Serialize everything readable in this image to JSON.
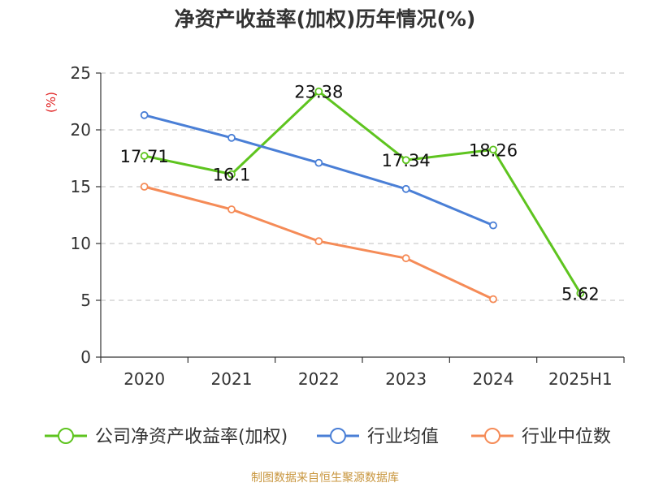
{
  "chart_data": {
    "type": "line",
    "title": "净资产收益率(加权)历年情况(%)",
    "ylabel": "(%)",
    "xlabel": "",
    "categories": [
      "2020",
      "2021",
      "2022",
      "2023",
      "2024",
      "2025H1"
    ],
    "ylim": [
      0,
      25
    ],
    "yticks": [
      0,
      5,
      10,
      15,
      20,
      25
    ],
    "grid": "horizontal dashed",
    "legend_position": "bottom",
    "series": [
      {
        "name": "公司净资产收益率(加权)",
        "color": "#5ec41f",
        "values": [
          17.71,
          16.1,
          23.38,
          17.34,
          18.26,
          5.62
        ],
        "labels": [
          "17.71",
          "16.1",
          "23.38",
          "17.34",
          "18.26",
          "5.62"
        ]
      },
      {
        "name": "行业均值",
        "color": "#4a7fd6",
        "values": [
          21.3,
          19.3,
          17.1,
          14.8,
          11.6,
          null
        ]
      },
      {
        "name": "行业中位数",
        "color": "#f58b57",
        "values": [
          15.0,
          13.0,
          10.2,
          8.7,
          5.1,
          null
        ]
      }
    ]
  },
  "footer": {
    "source": "制图数据来自恒生聚源数据库",
    "source_color": "#c8963e"
  },
  "colors": {
    "axis": "#333333",
    "grid": "#cccccc",
    "ylabel": "#e02020"
  }
}
